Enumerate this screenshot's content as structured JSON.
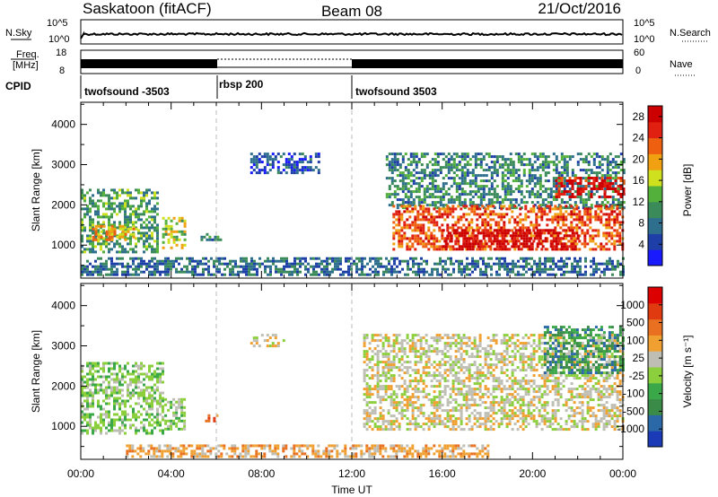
{
  "header": {
    "station": "Saskatoon (fitACF)",
    "beam": "Beam 08",
    "date": "21/Oct/2016"
  },
  "noise_panel": {
    "left_label": "N.Sky",
    "right_label": "N.Search",
    "left_ticks": [
      "10^5",
      "10^0"
    ],
    "right_ticks": [
      "10^5",
      "10^0"
    ]
  },
  "freq_panel": {
    "left_label_1": "Freq.",
    "left_label_2": "[MHz]",
    "right_label": "Nave",
    "left_ticks": [
      "18",
      "8"
    ],
    "right_ticks": [
      "60",
      "0"
    ]
  },
  "cpid": {
    "label": "CPID",
    "segments": [
      {
        "name": "twofsound -3503",
        "start_h": 0,
        "end_h": 6
      },
      {
        "name": "rbsp 200",
        "start_h": 6,
        "end_h": 12
      },
      {
        "name": "twofsound 3503",
        "start_h": 12,
        "end_h": 24
      }
    ]
  },
  "colors": {
    "power": [
      "#1a1aff",
      "#1f3fa8",
      "#2e6f8e",
      "#3a8a5a",
      "#53b03a",
      "#cfe01f",
      "#f0a010",
      "#ee6010",
      "#e02010",
      "#cc0000"
    ],
    "velocity": [
      "#1a3ab8",
      "#2a68a8",
      "#3a8a48",
      "#3aa848",
      "#8ccf3c",
      "#bebeb4",
      "#f0a030",
      "#e87020",
      "#e03a10",
      "#dd0000"
    ]
  },
  "chart_data": [
    {
      "type": "heatmap",
      "title": "",
      "xlabel": "Time UT",
      "ylabel": "Slant Range [km]",
      "xlim": [
        0,
        24
      ],
      "ylim": [
        180,
        4550
      ],
      "x_ticks": [
        "00:00",
        "04:00",
        "08:00",
        "12:00",
        "16:00",
        "20:00",
        "00:00"
      ],
      "y_ticks": [
        1000,
        2000,
        3000,
        4000
      ],
      "colorbar": {
        "label": "Power [dB]",
        "ticks": [
          4,
          8,
          12,
          16,
          20,
          24,
          28
        ],
        "range": [
          0,
          30
        ]
      },
      "regions": [
        {
          "t0": 0.0,
          "t1": 3.4,
          "r0": 800,
          "r1": 2400,
          "level": 10
        },
        {
          "t0": 0.5,
          "t1": 2.5,
          "r0": 1100,
          "r1": 1500,
          "level": 18
        },
        {
          "t0": 3.6,
          "t1": 4.6,
          "r0": 900,
          "r1": 1700,
          "level": 14
        },
        {
          "t0": 5.3,
          "t1": 6.2,
          "r0": 1150,
          "r1": 1300,
          "level": 8
        },
        {
          "t0": 0.0,
          "t1": 24.0,
          "r0": 250,
          "r1": 700,
          "level": 6
        },
        {
          "t0": 7.5,
          "t1": 10.5,
          "r0": 2800,
          "r1": 3300,
          "level": 4
        },
        {
          "t0": 13.5,
          "t1": 24.0,
          "r0": 1900,
          "r1": 3300,
          "level": 8
        },
        {
          "t0": 13.8,
          "t1": 24.0,
          "r0": 900,
          "r1": 2000,
          "level": 22
        },
        {
          "t0": 16.0,
          "t1": 22.0,
          "r0": 900,
          "r1": 1400,
          "level": 28
        },
        {
          "t0": 21.0,
          "t1": 24.0,
          "r0": 2200,
          "r1": 2700,
          "level": 26
        }
      ]
    },
    {
      "type": "heatmap",
      "title": "",
      "xlabel": "Time UT",
      "ylabel": "Slant Range [km]",
      "xlim": [
        0,
        24
      ],
      "ylim": [
        180,
        4550
      ],
      "x_ticks": [
        "00:00",
        "04:00",
        "08:00",
        "12:00",
        "16:00",
        "20:00",
        "00:00"
      ],
      "y_ticks": [
        1000,
        2000,
        3000,
        4000
      ],
      "colorbar": {
        "label": "Velocity [m s⁻¹]",
        "ticks": [
          "1000",
          "500",
          "100",
          "25",
          "-25",
          "-100",
          "-500",
          "-1000"
        ]
      },
      "regions": [
        {
          "t0": 0.0,
          "t1": 3.6,
          "r0": 800,
          "r1": 2600,
          "level": 4
        },
        {
          "t0": 3.7,
          "t1": 4.6,
          "r0": 900,
          "r1": 1700,
          "level": 4
        },
        {
          "t0": 5.5,
          "t1": 6.2,
          "r0": 1150,
          "r1": 1300,
          "level": 7
        },
        {
          "t0": 2.0,
          "t1": 18.0,
          "r0": 250,
          "r1": 550,
          "level": 6
        },
        {
          "t0": 12.5,
          "t1": 24.0,
          "r0": 900,
          "r1": 3300,
          "level": 5
        },
        {
          "t0": 20.5,
          "t1": 24.0,
          "r0": 2300,
          "r1": 3500,
          "level": 2
        },
        {
          "t0": 7.5,
          "t1": 9.0,
          "r0": 3000,
          "r1": 3300,
          "level": 5
        }
      ]
    }
  ]
}
